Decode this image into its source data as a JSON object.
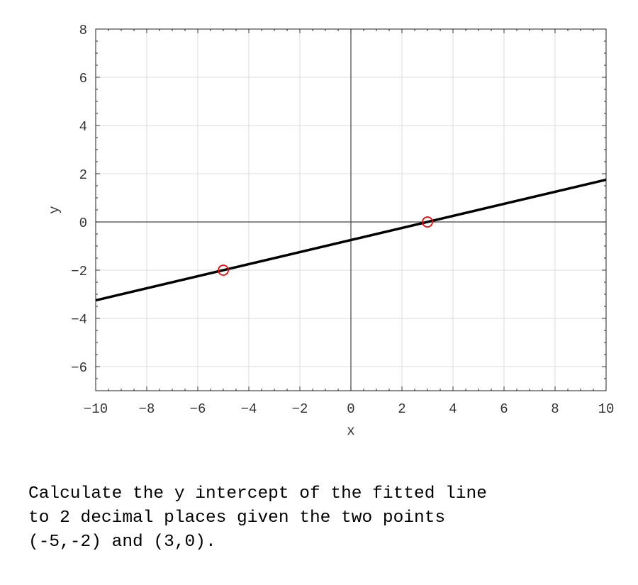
{
  "chart_data": {
    "type": "line",
    "title": "",
    "xlabel": "x",
    "ylabel": "y",
    "xlim": [
      -10,
      10
    ],
    "ylim": [
      -7,
      8
    ],
    "xticks": [
      -10,
      -8,
      -6,
      -4,
      -2,
      0,
      2,
      4,
      6,
      8,
      10
    ],
    "yticks": [
      -6,
      -4,
      -2,
      0,
      2,
      4,
      6,
      8
    ],
    "grid": true,
    "series": [
      {
        "type": "line",
        "slope": 0.25,
        "intercept": -0.75,
        "x": [
          -10,
          10
        ],
        "y": [
          -3.25,
          1.75
        ],
        "color": "#000000"
      },
      {
        "type": "scatter",
        "marker": "open-circle",
        "x": [
          -5,
          3
        ],
        "y": [
          -2,
          0
        ],
        "color": "#ff0000"
      }
    ]
  },
  "question": "Calculate the y intercept of the fitted line\nto 2 decimal places given the two points\n(-5,-2) and (3,0)."
}
